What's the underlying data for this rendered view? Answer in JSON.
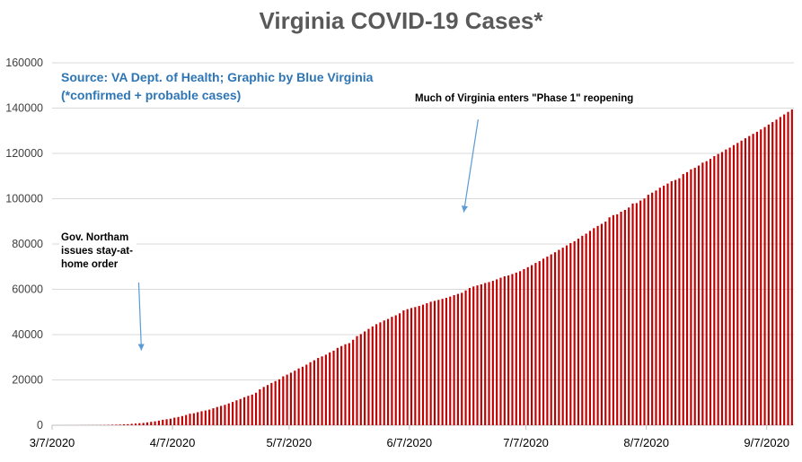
{
  "chart_data": {
    "type": "bar",
    "title": "Virginia COVID-19 Cases*",
    "subtitle_lines": [
      "Source: VA Dept. of Health; Graphic by Blue Virginia",
      "(*confirmed + probable cases)"
    ],
    "xlabel": "",
    "ylabel": "",
    "ylim": [
      0,
      160000
    ],
    "y_ticks": [
      "0",
      "20000",
      "40000",
      "60000",
      "80000",
      "100000",
      "120000",
      "140000",
      "160000"
    ],
    "x_tick_labels": [
      "3/7/2020",
      "4/7/2020",
      "5/7/2020",
      "6/7/2020",
      "7/7/2020",
      "8/7/2020",
      "9/7/2020"
    ],
    "grid": true,
    "legend": "none",
    "bar_color": "#c00000",
    "series": [
      {
        "start_date": "2020-03-07",
        "interval_days": 1,
        "values": [
          2,
          3,
          5,
          9,
          12,
          17,
          30,
          41,
          45,
          51,
          67,
          77,
          94,
          114,
          152,
          219,
          254,
          290,
          391,
          460,
          604,
          739,
          890,
          1020,
          1250,
          1484,
          1706,
          2012,
          2407,
          2637,
          2878,
          3333,
          3645,
          4042,
          4509,
          5077,
          5274,
          5747,
          6171,
          6500,
          6889,
          7491,
          8053,
          8537,
          8990,
          9630,
          10266,
          10998,
          11594,
          12366,
          12970,
          13535,
          14339,
          15846,
          16901,
          17731,
          18671,
          19492,
          20256,
          21570,
          22342,
          23196,
          24081,
          25070,
          25800,
          26746,
          27813,
          28672,
          29683,
          30388,
          31140,
          32145,
          32908,
          34137,
          34950,
          35749,
          36244,
          37727,
          39342,
          40249,
          41401,
          42533,
          43611,
          44607,
          45398,
          46239,
          46905,
          47856,
          48532,
          49397,
          50681,
          51251,
          51738,
          52177,
          52647,
          53211,
          53869,
          54506,
          54886,
          55331,
          55775,
          56238,
          56793,
          57443,
          57994,
          58465,
          59514,
          60570,
          61247,
          61736,
          62189,
          62787,
          63203,
          63735,
          64393,
          65109,
          65748,
          66102,
          66740,
          67375,
          67988,
          68931,
          69782,
          70670,
          71642,
          72443,
          73527,
          74431,
          75433,
          76373,
          77430,
          78375,
          79371,
          80393,
          81237,
          82364,
          83609,
          84567,
          85801,
          86994,
          87993,
          88904,
          89888,
          91782,
          92756,
          93106,
          94251,
          95049,
          96125,
          97882,
          98041,
          99189,
          100086,
          101745,
          102674,
          103622,
          104838,
          105750,
          106687,
          107745,
          108282,
          109019,
          110860,
          111750,
          112966,
          113630,
          114635,
          115908,
          116579,
          117592,
          118809,
          119747,
          120594,
          121729,
          122542,
          123668,
          124635,
          125635,
          126689,
          127683,
          128633,
          129532,
          130580,
          131640,
          132730,
          133830,
          134920,
          136080,
          137210,
          138330,
          139380
        ]
      }
    ],
    "annotations": [
      {
        "text": "Much of Virginia enters \"Phase 1\" reopening",
        "arrow_date": "2020-06-21",
        "arrow_from": 135000,
        "arrow_to": 94000
      },
      {
        "text": "Gov. Northam issues stay-at-home order",
        "arrow_date": "2020-03-30",
        "arrow_from": 63000,
        "arrow_to": 33000
      }
    ],
    "arrow_color": "#5b9bd5"
  }
}
